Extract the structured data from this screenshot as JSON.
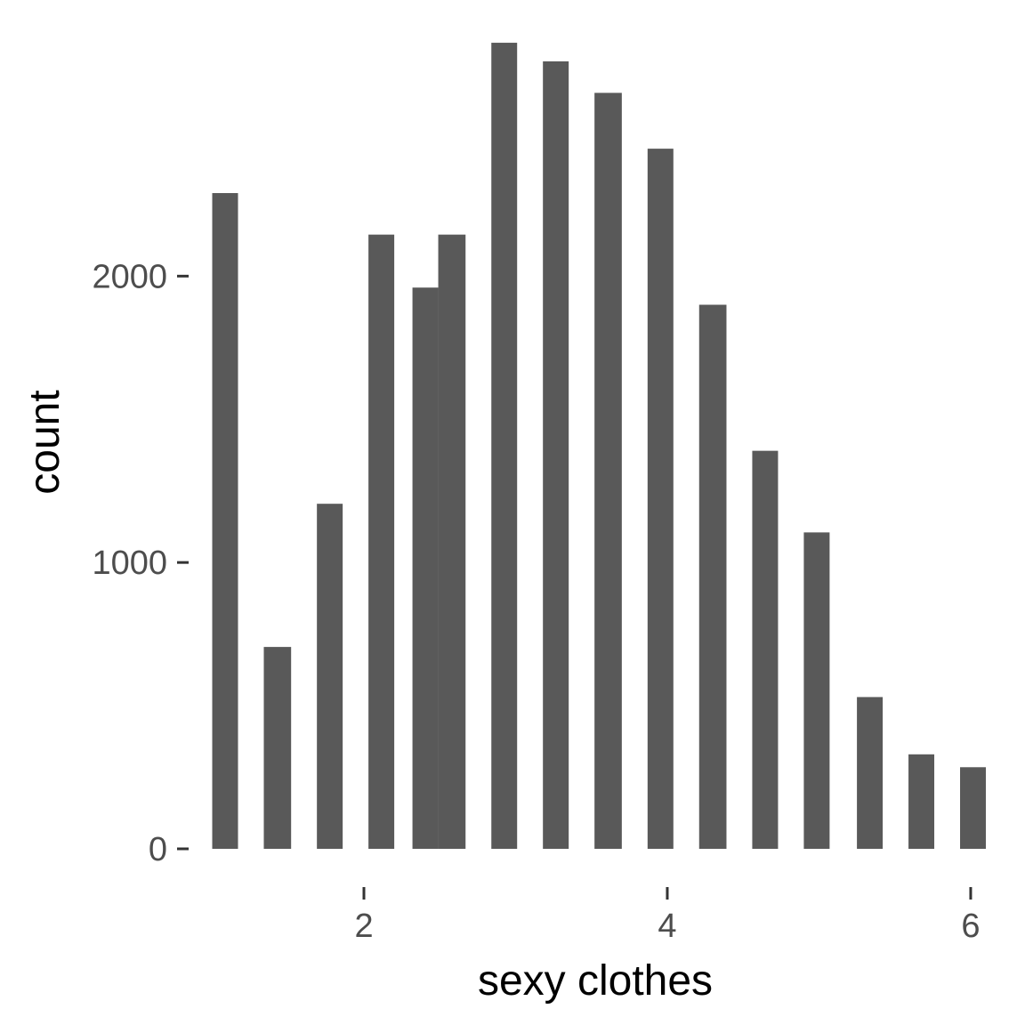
{
  "chart_data": {
    "type": "bar",
    "title": "",
    "xlabel": "sexy clothes",
    "ylabel": "count",
    "xlim": [
      0.95,
      6.1
    ],
    "ylim": [
      0,
      2840
    ],
    "x_ticks": [
      {
        "value": 2,
        "label": "2"
      },
      {
        "value": 4,
        "label": "4"
      },
      {
        "value": 6,
        "label": "6"
      }
    ],
    "y_ticks": [
      {
        "value": 0,
        "label": "0"
      },
      {
        "value": 1000,
        "label": "1000"
      },
      {
        "value": 2000,
        "label": "2000"
      }
    ],
    "bar_color": "#595959",
    "grid": false,
    "legend": "none",
    "bars": [
      {
        "x0": 1.0,
        "x1": 1.17,
        "value": 2290
      },
      {
        "x0": 1.34,
        "x1": 1.52,
        "value": 705
      },
      {
        "x0": 1.69,
        "x1": 1.86,
        "value": 1205
      },
      {
        "x0": 2.03,
        "x1": 2.2,
        "value": 2145
      },
      {
        "x0": 2.32,
        "x1": 2.49,
        "value": 1960
      },
      {
        "x0": 2.49,
        "x1": 2.67,
        "value": 2145
      },
      {
        "x0": 2.84,
        "x1": 3.01,
        "value": 2815
      },
      {
        "x0": 3.18,
        "x1": 3.35,
        "value": 2750
      },
      {
        "x0": 3.52,
        "x1": 3.7,
        "value": 2640
      },
      {
        "x0": 3.87,
        "x1": 4.04,
        "value": 2445
      },
      {
        "x0": 4.21,
        "x1": 4.39,
        "value": 1900
      },
      {
        "x0": 4.56,
        "x1": 4.73,
        "value": 1390
      },
      {
        "x0": 4.9,
        "x1": 5.07,
        "value": 1105
      },
      {
        "x0": 5.25,
        "x1": 5.42,
        "value": 530
      },
      {
        "x0": 5.59,
        "x1": 5.76,
        "value": 330
      },
      {
        "x0": 5.93,
        "x1": 6.1,
        "value": 285
      }
    ]
  }
}
